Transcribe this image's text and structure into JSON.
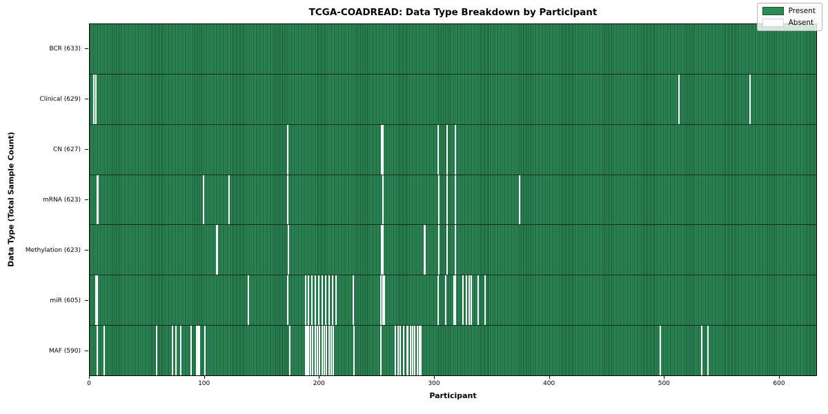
{
  "chart_data": {
    "type": "heatmap",
    "title": "TCGA-COADREAD: Data Type Breakdown by Participant",
    "xlabel": "Participant",
    "ylabel": "Data Type (Total Sample Count)",
    "n_participants": 633,
    "x_ticks": [
      0,
      100,
      200,
      300,
      400,
      500,
      600
    ],
    "grid": false,
    "legend_position": "upper right",
    "colors": {
      "present": "#2e8b57",
      "present_edge": "#1b4d31",
      "absent": "#ffffff"
    },
    "legend": [
      {
        "label": "Present",
        "color": "#2e8b57"
      },
      {
        "label": "Absent",
        "color": "#ffffff"
      }
    ],
    "rows": [
      {
        "label": "BCR (633)",
        "data_type": "BCR",
        "total_samples": 633,
        "absent_participants": []
      },
      {
        "label": "Clinical (629)",
        "data_type": "Clinical",
        "total_samples": 629,
        "absent_participants": [
          3,
          5,
          513,
          575
        ]
      },
      {
        "label": "CN (627)",
        "data_type": "CN",
        "total_samples": 627,
        "absent_participants": [
          172,
          254,
          255,
          303,
          311,
          318
        ]
      },
      {
        "label": "mRNA (623)",
        "data_type": "mRNA",
        "total_samples": 623,
        "absent_participants": [
          6,
          7,
          99,
          121,
          172,
          255,
          304,
          311,
          318,
          374
        ]
      },
      {
        "label": "Methylation (623)",
        "data_type": "Methylation",
        "total_samples": 623,
        "absent_participants": [
          110,
          111,
          173,
          254,
          255,
          291,
          292,
          304,
          311,
          318
        ]
      },
      {
        "label": "miR (605)",
        "data_type": "miR",
        "total_samples": 605,
        "absent_participants": [
          5,
          6,
          138,
          172,
          188,
          190,
          193,
          196,
          199,
          202,
          205,
          208,
          211,
          214,
          229,
          253,
          255,
          256,
          303,
          310,
          317,
          318,
          325,
          328,
          330,
          332,
          338,
          344
        ]
      },
      {
        "label": "MAF (590)",
        "data_type": "MAF",
        "total_samples": 590,
        "absent_participants": [
          6,
          12,
          58,
          72,
          75,
          79,
          88,
          93,
          94,
          95,
          100,
          174,
          188,
          189,
          190,
          192,
          194,
          196,
          198,
          200,
          202,
          204,
          206,
          208,
          210,
          212,
          230,
          253,
          266,
          268,
          270,
          273,
          276,
          277,
          279,
          281,
          283,
          285,
          287,
          288,
          497,
          533,
          538
        ]
      }
    ]
  }
}
